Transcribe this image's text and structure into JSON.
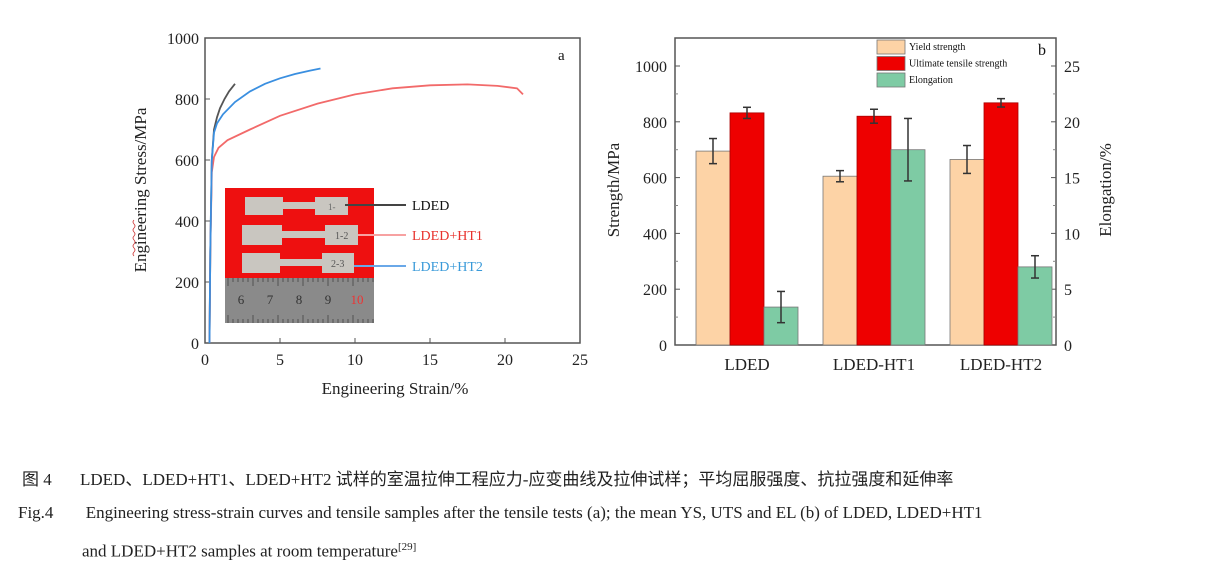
{
  "chart_data": [
    {
      "type": "line",
      "panel_label": "a",
      "xlabel": "Engineering Strain/%",
      "ylabel": "Engineering Stress/MPa",
      "xlim": [
        0,
        25
      ],
      "ylim": [
        0,
        1000
      ],
      "xticks": [
        "0",
        "5",
        "10",
        "15",
        "20",
        "25"
      ],
      "yticks": [
        "0",
        "200",
        "400",
        "600",
        "800",
        "1000"
      ],
      "series": [
        {
          "name": "LDED",
          "color": "#555555",
          "x": [
            0.3,
            0.35,
            0.45,
            0.6,
            0.8,
            1.0,
            1.3,
            1.6,
            2.0
          ],
          "y": [
            0,
            300,
            600,
            700,
            740,
            770,
            800,
            825,
            850
          ]
        },
        {
          "name": "LDED+HT1",
          "color": "#f26a6a",
          "x": [
            0.3,
            0.35,
            0.45,
            0.6,
            0.9,
            1.5,
            3,
            5,
            7.5,
            10,
            12.5,
            15,
            17.5,
            19.5,
            20.8,
            21.2
          ],
          "y": [
            0,
            300,
            560,
            610,
            640,
            665,
            700,
            745,
            785,
            815,
            835,
            845,
            848,
            843,
            835,
            815
          ]
        },
        {
          "name": "LDED+HT2",
          "color": "#3a8fe0",
          "x": [
            0.3,
            0.35,
            0.45,
            0.6,
            0.8,
            1.2,
            2,
            3,
            4,
            5,
            6,
            7,
            7.7
          ],
          "y": [
            0,
            300,
            600,
            690,
            720,
            750,
            790,
            825,
            850,
            868,
            882,
            893,
            900
          ]
        }
      ],
      "inset": {
        "labels": [
          "LDED",
          "LDED+HT1",
          "LDED+HT2"
        ],
        "label_colors": [
          "#111111",
          "#e8322d",
          "#3a9ad9"
        ],
        "ruler_numbers": [
          "6",
          "7",
          "8",
          "9",
          "10"
        ],
        "specimen_marks": [
          "1-",
          "1-2",
          "2-3"
        ]
      }
    },
    {
      "type": "bar",
      "panel_label": "b",
      "categories": [
        "LDED",
        "LDED-HT1",
        "LDED-HT2"
      ],
      "ylabel": "Strength/MPa",
      "y2label": "Elongation/%",
      "ylim": [
        0,
        1100
      ],
      "y2lim": [
        0,
        27.5
      ],
      "yticks": [
        "0",
        "200",
        "400",
        "600",
        "800",
        "1000"
      ],
      "y2ticks": [
        "0",
        "5",
        "10",
        "15",
        "20",
        "25"
      ],
      "series": [
        {
          "name": "Yield strength",
          "axis": "left",
          "color": "#fdd3a6",
          "values": [
            695,
            605,
            665
          ],
          "errors": [
            45,
            20,
            50
          ]
        },
        {
          "name": "Ultimate tensile strength",
          "axis": "left",
          "color": "#ee0000",
          "values": [
            832,
            820,
            868
          ],
          "errors": [
            20,
            25,
            15
          ]
        },
        {
          "name": "Elongation",
          "axis": "right",
          "color": "#7ecba4",
          "values": [
            3.4,
            17.5,
            7.0
          ],
          "errors": [
            1.4,
            2.8,
            1.0
          ]
        }
      ],
      "legend_position": "top-right"
    }
  ],
  "caption": {
    "cn_label": "图 4",
    "cn_text": "LDED、LDED+HT1、LDED+HT2 试样的室温拉伸工程应力-应变曲线及拉伸试样；平均屈服强度、抗拉强度和延伸率",
    "en_label": "Fig.4",
    "en_line1": "Engineering stress-strain curves and tensile samples after the tensile tests (a); the mean YS, UTS and EL (b) of LDED, LDED+HT1",
    "en_line2": "and LDED+HT2 samples at room temperature",
    "en_ref": "[29]"
  }
}
